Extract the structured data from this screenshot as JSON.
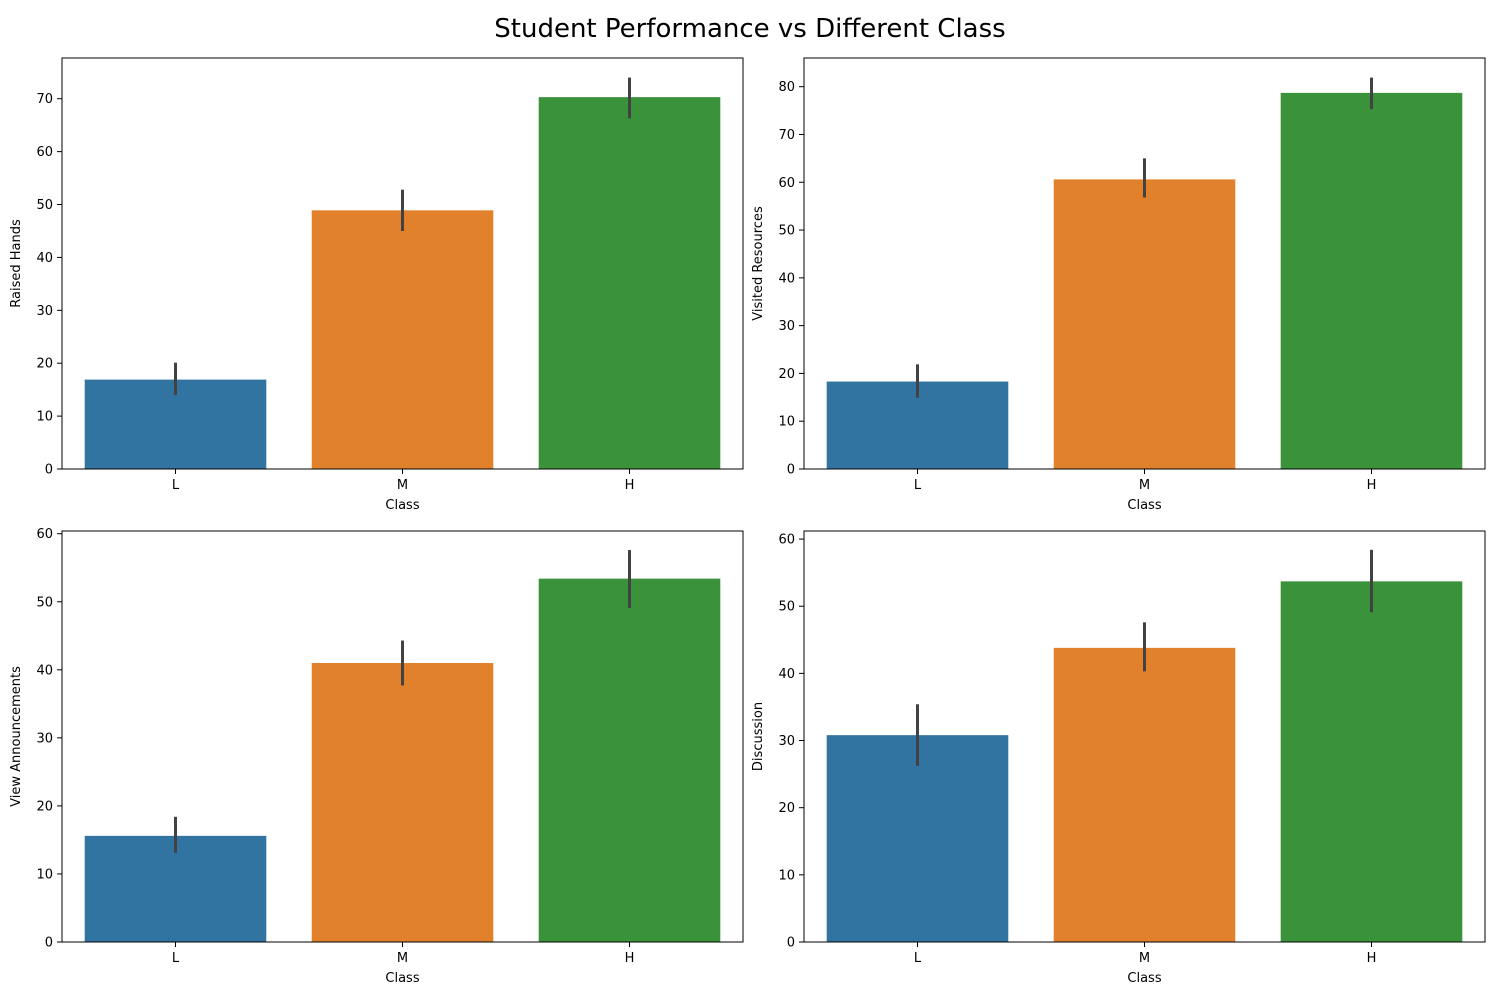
{
  "title": "Student Performance vs Different Class",
  "colors": {
    "L": "#3274a1",
    "M": "#e1812c",
    "H": "#3a923a",
    "errorbar": "#424242"
  },
  "chart_data": [
    {
      "type": "bar",
      "categories": [
        "L",
        "M",
        "H"
      ],
      "values": [
        16.9,
        48.9,
        70.3
      ],
      "error_low": [
        14.0,
        45.0,
        66.3
      ],
      "error_high": [
        20.1,
        52.8,
        74.0
      ],
      "xlabel": "Class",
      "ylabel": "Raised Hands",
      "ylim": [
        0,
        77.7
      ],
      "yticks": [
        0,
        10,
        20,
        30,
        40,
        50,
        60,
        70
      ]
    },
    {
      "type": "bar",
      "categories": [
        "L",
        "M",
        "H"
      ],
      "values": [
        18.3,
        60.6,
        78.7
      ],
      "error_low": [
        14.9,
        56.8,
        75.3
      ],
      "error_high": [
        21.9,
        65.0,
        81.9
      ],
      "xlabel": "Class",
      "ylabel": "Visited Resources",
      "ylim": [
        0,
        86.0
      ],
      "yticks": [
        0,
        10,
        20,
        30,
        40,
        50,
        60,
        70,
        80
      ]
    },
    {
      "type": "bar",
      "categories": [
        "L",
        "M",
        "H"
      ],
      "values": [
        15.6,
        41.0,
        53.4
      ],
      "error_low": [
        13.1,
        37.7,
        49.1
      ],
      "error_high": [
        18.4,
        44.3,
        57.6
      ],
      "xlabel": "Class",
      "ylabel": "View Announcements",
      "ylim": [
        0,
        60.4
      ],
      "yticks": [
        0,
        10,
        20,
        30,
        40,
        50,
        60
      ]
    },
    {
      "type": "bar",
      "categories": [
        "L",
        "M",
        "H"
      ],
      "values": [
        30.8,
        43.8,
        53.7
      ],
      "error_low": [
        26.2,
        40.3,
        49.1
      ],
      "error_high": [
        35.4,
        47.6,
        58.4
      ],
      "xlabel": "Class",
      "ylabel": "Discussion",
      "ylim": [
        0,
        61.2
      ],
      "yticks": [
        0,
        10,
        20,
        30,
        40,
        50,
        60
      ]
    }
  ]
}
